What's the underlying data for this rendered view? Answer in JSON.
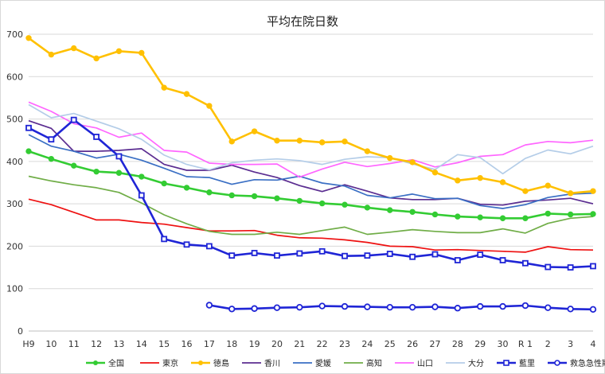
{
  "chart_data": {
    "type": "line",
    "title": "平均在院日数",
    "xlabel": "",
    "ylabel": "",
    "ylim": [
      0,
      700
    ],
    "yticks": [
      0,
      100,
      200,
      300,
      400,
      500,
      600,
      700
    ],
    "grid": true,
    "legend_position": "bottom",
    "categories": [
      "H9",
      "10",
      "11",
      "12",
      "13",
      "14",
      "15",
      "16",
      "17",
      "18",
      "19",
      "20",
      "21",
      "22",
      "23",
      "24",
      "25",
      "26",
      "27",
      "28",
      "29",
      "30",
      "R 1",
      "2",
      "3",
      "4"
    ],
    "series": [
      {
        "name": "全国",
        "color": "#33cc33",
        "marker": "circle",
        "thick": true,
        "values": [
          424,
          406,
          390,
          376,
          373,
          364,
          348,
          338,
          327,
          320,
          318,
          313,
          307,
          301,
          298,
          291,
          285,
          281,
          275,
          270,
          268,
          266,
          266,
          277,
          275,
          276
        ]
      },
      {
        "name": "東京",
        "color": "#ee1111",
        "marker": "none",
        "values": [
          311,
          298,
          280,
          262,
          262,
          256,
          252,
          244,
          236,
          236,
          237,
          226,
          220,
          219,
          215,
          209,
          200,
          199,
          191,
          192,
          190,
          188,
          186,
          199,
          192,
          191
        ]
      },
      {
        "name": "徳島",
        "color": "#ffc000",
        "marker": "circle",
        "thick": true,
        "values": [
          691,
          652,
          667,
          643,
          660,
          656,
          574,
          559,
          531,
          447,
          471,
          449,
          449,
          445,
          447,
          424,
          408,
          398,
          374,
          355,
          361,
          351,
          330,
          343,
          325,
          330
        ]
      },
      {
        "name": "香川",
        "color": "#5b2d91",
        "marker": "none",
        "values": [
          496,
          478,
          424,
          424,
          426,
          430,
          393,
          379,
          379,
          391,
          375,
          362,
          343,
          329,
          345,
          330,
          314,
          310,
          310,
          313,
          299,
          297,
          306,
          309,
          313,
          300
        ]
      },
      {
        "name": "愛媛",
        "color": "#3a6fc4",
        "marker": "none",
        "values": [
          463,
          436,
          424,
          408,
          417,
          403,
          384,
          364,
          362,
          346,
          357,
          356,
          365,
          349,
          342,
          320,
          314,
          323,
          312,
          313,
          296,
          289,
          298,
          315,
          323,
          325
        ]
      },
      {
        "name": "高知",
        "color": "#70ad47",
        "marker": "none",
        "values": [
          365,
          354,
          345,
          338,
          327,
          302,
          274,
          253,
          235,
          228,
          228,
          233,
          228,
          237,
          245,
          228,
          233,
          239,
          235,
          232,
          232,
          241,
          231,
          254,
          266,
          270
        ]
      },
      {
        "name": "山口",
        "color": "#ff66ff",
        "marker": "none",
        "values": [
          540,
          518,
          489,
          479,
          457,
          467,
          426,
          422,
          396,
          393,
          393,
          394,
          363,
          382,
          398,
          388,
          395,
          404,
          387,
          397,
          412,
          416,
          439,
          447,
          444,
          450
        ]
      },
      {
        "name": "大分",
        "color": "#b4cde8",
        "marker": "none",
        "values": [
          534,
          503,
          513,
          495,
          477,
          452,
          415,
          393,
          380,
          397,
          403,
          406,
          402,
          393,
          405,
          411,
          409,
          394,
          381,
          416,
          409,
          371,
          407,
          427,
          418,
          436
        ]
      },
      {
        "name": "藍里",
        "color": "#1f25d6",
        "marker": "square",
        "thick": true,
        "values": [
          479,
          452,
          498,
          458,
          412,
          320,
          217,
          204,
          200,
          178,
          184,
          178,
          183,
          188,
          177,
          178,
          182,
          175,
          181,
          167,
          180,
          167,
          160,
          151,
          150,
          153
        ]
      },
      {
        "name": "救急急性期病棟",
        "color": "#1f25d6",
        "marker": "circle-open",
        "thick": true,
        "values": [
          null,
          null,
          null,
          null,
          null,
          null,
          null,
          null,
          61,
          52,
          53,
          55,
          56,
          59,
          58,
          57,
          56,
          56,
          57,
          54,
          58,
          58,
          60,
          55,
          52,
          51
        ]
      }
    ]
  }
}
